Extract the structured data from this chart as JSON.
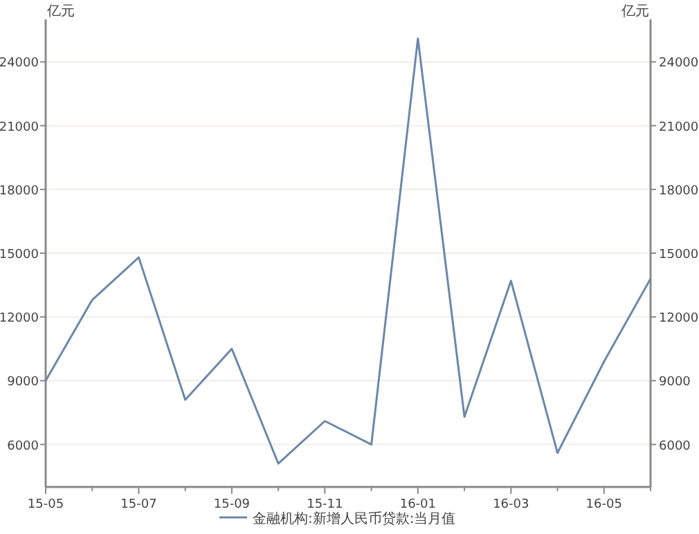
{
  "chart_data": {
    "type": "line",
    "categories": [
      "15-05",
      null,
      "15-07",
      null,
      "15-09",
      null,
      "15-11",
      null,
      "16-01",
      null,
      "16-03",
      null,
      "16-05",
      null
    ],
    "series": [
      {
        "name": "金融机构:新增人民币贷款:当月值",
        "color": "#6a88aa",
        "values": [
          9000,
          12800,
          14800,
          8100,
          10500,
          5100,
          7100,
          6000,
          25100,
          7300,
          13700,
          5600,
          9900,
          13800
        ]
      }
    ],
    "ylabel": "亿元",
    "y2label": "亿元",
    "ylim": [
      4000,
      26000
    ],
    "yticks": [
      6000,
      9000,
      12000,
      15000,
      18000,
      21000,
      24000
    ],
    "y2lim": [
      4000,
      26000
    ],
    "y2ticks": [
      6000,
      9000,
      12000,
      15000,
      18000,
      21000,
      24000
    ],
    "grid": "y",
    "legend": "bottom",
    "marker": "none",
    "line_style": "solid"
  }
}
